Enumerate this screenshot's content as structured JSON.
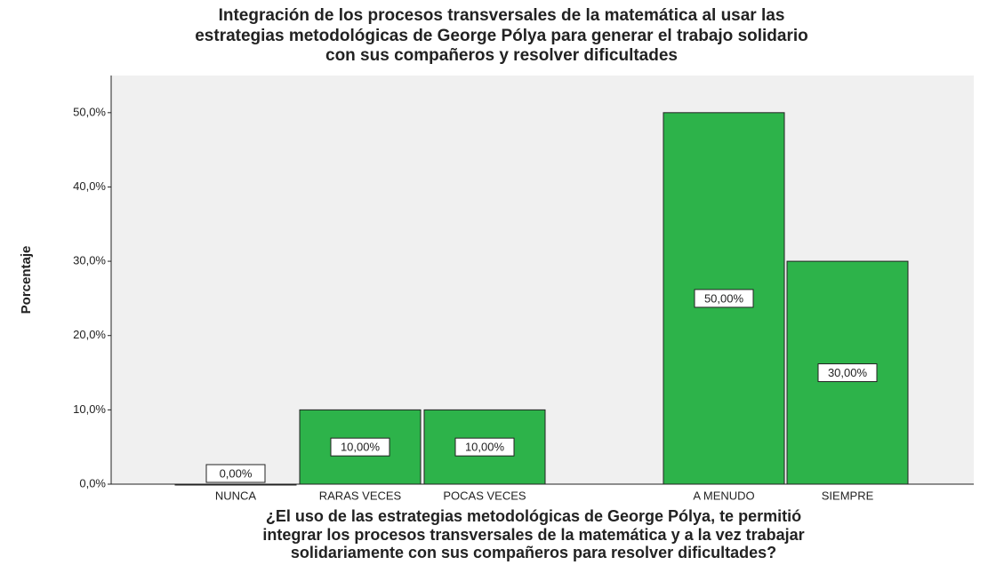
{
  "chart_data": {
    "type": "bar",
    "title": [
      "Integración de los procesos transversales de la matemática al usar las",
      "estrategias metodológicas de George Pólya para generar el trabajo solidario",
      "con sus compañeros y resolver dificultades"
    ],
    "x_label": [
      "¿El uso de las estrategias metodológicas de George Pólya, te permitió",
      "integrar los procesos transversales de la matemática y a la vez  trabajar",
      "solidariamente con sus compañeros para resolver dificultades?"
    ],
    "y_label": "Porcentaje",
    "categories": [
      "NUNCA",
      "RARAS VECES",
      "POCAS VECES",
      "A MENUDO",
      "SIEMPRE"
    ],
    "values": [
      0,
      10,
      10,
      50,
      30
    ],
    "value_labels": [
      "0,00%",
      "10,00%",
      "10,00%",
      "50,00%",
      "30,00%"
    ],
    "color": "#2db34a",
    "ylim": [
      0,
      55
    ],
    "yticks": [
      {
        "value": 0,
        "label": "0,0%"
      },
      {
        "value": 10,
        "label": "10,0%"
      },
      {
        "value": 20,
        "label": "20,0%"
      },
      {
        "value": 30,
        "label": "30,0%"
      },
      {
        "value": 40,
        "label": "40,0%"
      },
      {
        "value": 50,
        "label": "50,0%"
      }
    ]
  }
}
